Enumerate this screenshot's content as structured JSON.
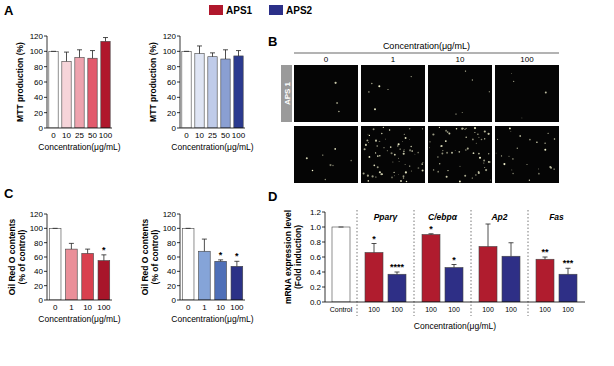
{
  "figure": {
    "panel_labels": [
      "A",
      "B",
      "C",
      "D"
    ],
    "legend": [
      {
        "name": "APS1",
        "color": "#b0172c"
      },
      {
        "name": "APS2",
        "color": "#2b2f88"
      }
    ]
  },
  "micrograph": {
    "title": "Concentration(μg/mL)",
    "columns": [
      "0",
      "1",
      "10",
      "100"
    ],
    "row_label": "APS 1",
    "rows": 2
  },
  "chart_data": [
    {
      "type": "bar",
      "ylabel": "MTT production (%)",
      "xlabel": "Concentration(μg/mL)",
      "categories": [
        "0",
        "10",
        "25",
        "50",
        "100"
      ],
      "values": [
        100,
        87,
        92,
        91,
        113
      ],
      "errors": [
        0,
        12,
        10,
        10,
        5
      ],
      "colors": [
        "#ffffff",
        "#f6d4d9",
        "#eea3ae",
        "#e25a6c",
        "#b0172c"
      ],
      "ylim": [
        0,
        120
      ],
      "yticks": [
        0,
        20,
        40,
        60,
        80,
        100,
        120
      ]
    },
    {
      "type": "bar",
      "ylabel": "MTT production (%)",
      "xlabel": "Concentration(μg/mL)",
      "categories": [
        "0",
        "10",
        "25",
        "50",
        "100"
      ],
      "values": [
        100,
        97,
        93,
        90,
        94
      ],
      "errors": [
        0,
        10,
        5,
        12,
        7
      ],
      "colors": [
        "#ffffff",
        "#dfe5f4",
        "#bfcbe9",
        "#8a9fd2",
        "#2b3a8f"
      ],
      "ylim": [
        0,
        120
      ],
      "yticks": [
        0,
        20,
        40,
        60,
        80,
        100,
        120
      ]
    },
    {
      "type": "bar",
      "ylabel": [
        "Oil Red O contents",
        "(% of control)"
      ],
      "xlabel": "Concentration(μg/mL)",
      "categories": [
        "0",
        "1",
        "10",
        "100"
      ],
      "values": [
        100,
        71,
        65,
        55
      ],
      "errors": [
        0,
        8,
        6,
        8
      ],
      "colors": [
        "#ffffff",
        "#ea8f99",
        "#d9404f",
        "#a8152a"
      ],
      "annotations": [
        null,
        null,
        null,
        "*"
      ],
      "ylim": [
        0,
        120
      ],
      "yticks": [
        0,
        20,
        40,
        60,
        80,
        100,
        120
      ]
    },
    {
      "type": "bar",
      "ylabel": [
        "Oil Red O contents",
        "(% of control)"
      ],
      "xlabel": "Concentration(μg/mL)",
      "categories": [
        "0",
        "1",
        "10",
        "100"
      ],
      "values": [
        100,
        68,
        54,
        47
      ],
      "errors": [
        0,
        17,
        2,
        7
      ],
      "colors": [
        "#ffffff",
        "#85a4d8",
        "#4f70b8",
        "#2b3287"
      ],
      "annotations": [
        null,
        null,
        "*",
        "*"
      ],
      "ylim": [
        0,
        120
      ],
      "yticks": [
        0,
        20,
        40,
        60,
        80,
        100,
        120
      ]
    },
    {
      "type": "bar",
      "ylabel": [
        "mRNA expression level",
        "(Fold induction)"
      ],
      "xlabel": "Concentration(μg/mL)",
      "groups": [
        "Pparγ",
        "C/ebpα",
        "Ap2",
        "Fas"
      ],
      "categories": [
        "Control",
        "100",
        "100",
        "100",
        "100",
        "100",
        "100",
        "100",
        "100"
      ],
      "values": [
        1.0,
        0.66,
        0.37,
        0.9,
        0.46,
        0.74,
        0.61,
        0.57,
        0.37
      ],
      "errors": [
        0,
        0.12,
        0.03,
        0.01,
        0.04,
        0.3,
        0.18,
        0.03,
        0.08
      ],
      "colors": [
        "#ffffff",
        "#b01c2e",
        "#2e2f86",
        "#b01c2e",
        "#2e2f86",
        "#b01c2e",
        "#2e2f86",
        "#b01c2e",
        "#2e2f86"
      ],
      "annotations": [
        null,
        "*",
        "****",
        "*",
        "*",
        null,
        null,
        "**",
        "***"
      ],
      "ylim": [
        0,
        1.2
      ],
      "yticks": [
        {
          "value": 0,
          "label": "0.0"
        },
        0.2,
        0.4,
        0.6,
        0.8,
        {
          "value": 1,
          "label": "1.0"
        },
        1.2
      ]
    }
  ]
}
